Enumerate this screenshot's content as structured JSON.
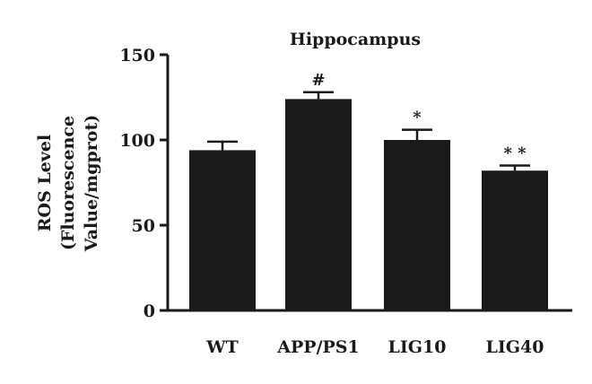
{
  "chart_data": {
    "type": "bar",
    "title": "Hippocampus",
    "ylabel_lines": [
      "ROS Level",
      "(Fluorescence",
      "Value/mgprot)"
    ],
    "xlabel": "",
    "categories": [
      "WT",
      "APP/PS1",
      "LIG10",
      "LIG40"
    ],
    "values": [
      94,
      124,
      100,
      82
    ],
    "errors": [
      5,
      4,
      6,
      3
    ],
    "annotations": [
      "",
      "#",
      "*",
      "* *"
    ],
    "ylim": [
      0,
      150
    ],
    "yticks": [
      "0",
      "50",
      "100",
      "150"
    ],
    "ytick_values": [
      0,
      50,
      100,
      150
    ],
    "grid": false,
    "bar_color": "#1a1a1a"
  }
}
